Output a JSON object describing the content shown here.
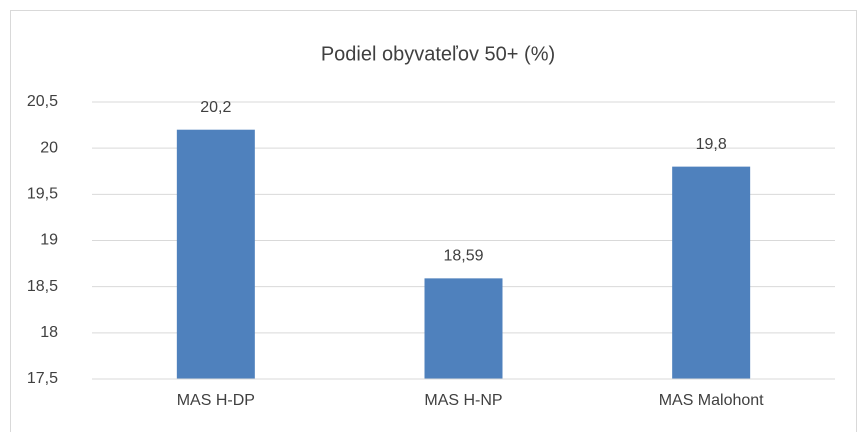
{
  "chart_data": {
    "type": "bar",
    "title": "Podiel obyvateľov 50+ (%)",
    "categories": [
      "MAS H-DP",
      "MAS H-NP",
      "MAS Malohont"
    ],
    "values": [
      20.2,
      18.59,
      19.8
    ],
    "value_labels": [
      "20,2",
      "18,59",
      "19,8"
    ],
    "color": "#4f81bd",
    "ylim": [
      17.5,
      20.5
    ],
    "yticks": [
      {
        "value": 17.5,
        "label": "17,5"
      },
      18,
      {
        "value": 18.5,
        "label": "18,5"
      },
      19,
      {
        "value": 19.5,
        "label": "19,5"
      },
      20,
      {
        "value": 20.5,
        "label": "20,5"
      }
    ],
    "grid": true
  }
}
